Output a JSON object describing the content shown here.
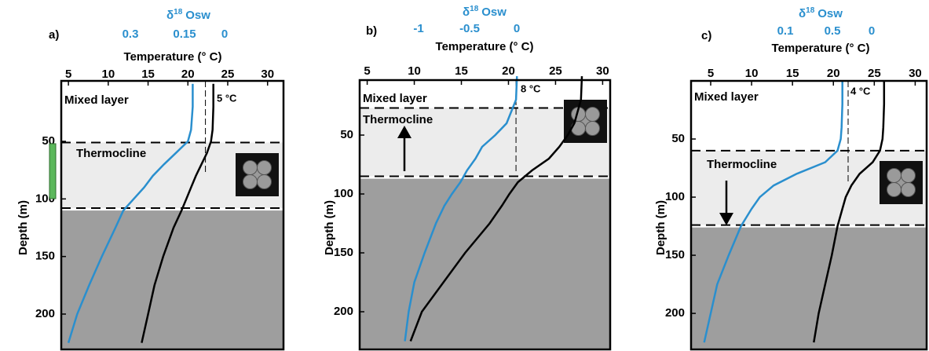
{
  "chart_data": [
    {
      "type": "line",
      "panel": "a)",
      "osw_title": [
        "δ",
        "18",
        "Osw"
      ],
      "osw_ticks": [
        0.3,
        0.15,
        0
      ],
      "x_label": "Temperature (° C)",
      "y_label": "Depth (m)",
      "xlim": [
        4.1,
        32
      ],
      "xticks": [
        5,
        10,
        15,
        20,
        25,
        30
      ],
      "ylim": [
        -2.5,
        230.7
      ],
      "yticks": [
        50,
        100,
        150,
        200
      ],
      "depth": [
        0,
        20,
        40,
        50,
        60,
        70,
        80,
        90,
        100,
        110,
        125,
        150,
        175,
        200,
        225
      ],
      "series": [
        {
          "color": "#2a8fce",
          "values": [
            20.6,
            20.6,
            20.4,
            20.0,
            18.5,
            17.0,
            15.6,
            14.5,
            13.2,
            11.9,
            10.9,
            9.2,
            7.6,
            6.1,
            5.0
          ]
        },
        {
          "color": "#000000",
          "values": [
            23.2,
            23.2,
            23.1,
            22.9,
            22.4,
            21.7,
            21.0,
            20.4,
            19.8,
            19.2,
            18.2,
            16.9,
            15.8,
            15.0,
            14.2
          ]
        }
      ],
      "mixed_layer_label": "Mixed layer",
      "thermocline_label": "Thermocline",
      "mixed_layer_depth": 51,
      "thermocline_depth": 108,
      "dt_label": "5 °C",
      "dt_temperature": 22.2,
      "dt_depth": 77
    },
    {
      "type": "line",
      "panel": "b)",
      "osw_title": [
        "δ",
        "18",
        "Osw"
      ],
      "osw_ticks": [
        -1,
        -0.5,
        0
      ],
      "x_label": "Temperature (° C)",
      "y_label": "Depth (m)",
      "xlim": [
        4.2,
        30.8
      ],
      "xticks": [
        5,
        10,
        15,
        20,
        25,
        30
      ],
      "ylim": [
        3.3,
        232
      ],
      "yticks": [
        50,
        100,
        150,
        200
      ],
      "depth": [
        0,
        20,
        40,
        50,
        60,
        70,
        80,
        90,
        100,
        110,
        125,
        150,
        175,
        200,
        225
      ],
      "series": [
        {
          "color": "#2a8fce",
          "values": [
            20.9,
            20.8,
            19.8,
            18.6,
            17.2,
            16.5,
            15.6,
            14.9,
            14.0,
            13.2,
            12.3,
            11.1,
            10.0,
            9.4,
            9.0
          ]
        },
        {
          "color": "#000000",
          "values": [
            27.8,
            27.7,
            27.0,
            26.3,
            25.4,
            24.3,
            22.5,
            21.0,
            20.1,
            19.3,
            18.0,
            15.4,
            13.1,
            10.8,
            9.6
          ]
        }
      ],
      "mixed_layer_label": "Mixed layer",
      "thermocline_label": "Thermocline",
      "mixed_layer_depth": 27,
      "thermocline_depth": 85,
      "dt_label": "8 °C",
      "dt_temperature": 20.8,
      "dt_depth": 83
    },
    {
      "type": "line",
      "panel": "c)",
      "osw_title": [
        "δ",
        "18",
        "Osw"
      ],
      "osw_ticks": [
        0.1,
        0.5,
        0
      ],
      "x_label": "Temperature (° C)",
      "y_label": "Depth (m)",
      "xlim": [
        2.6,
        31.4
      ],
      "xticks": [
        5,
        10,
        15,
        20,
        25,
        30
      ],
      "ylim": [
        0,
        231
      ],
      "yticks": [
        50,
        100,
        150,
        200
      ],
      "depth": [
        0,
        20,
        40,
        50,
        60,
        70,
        80,
        90,
        100,
        110,
        125,
        150,
        175,
        200,
        225
      ],
      "series": [
        {
          "color": "#2a8fce",
          "values": [
            21.1,
            21.1,
            21.0,
            20.9,
            20.5,
            19.0,
            15.5,
            12.7,
            11.0,
            10.0,
            8.7,
            7.2,
            5.8,
            5.0,
            4.2
          ]
        },
        {
          "color": "#000000",
          "values": [
            26.2,
            26.2,
            26.1,
            26.0,
            25.7,
            24.8,
            23.2,
            22.2,
            21.5,
            21.1,
            20.5,
            19.8,
            19.0,
            18.2,
            17.6
          ]
        }
      ],
      "mixed_layer_label": "Mixed layer",
      "thermocline_label": "Thermocline",
      "mixed_layer_depth": 60,
      "thermocline_depth": 124,
      "dt_label": "4 °C",
      "dt_temperature": 21.8,
      "dt_depth": 87
    }
  ]
}
